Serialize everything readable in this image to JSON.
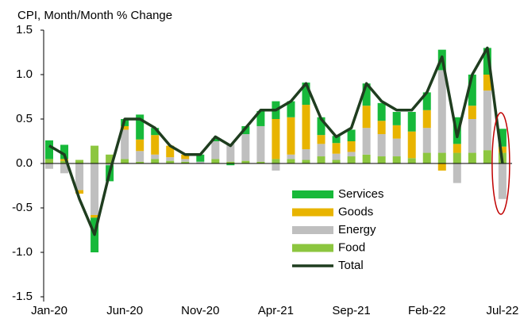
{
  "chart_data": {
    "type": "stacked_bar_line",
    "title": "CPI, Month/Month % Change",
    "categories": [
      "Jan-20",
      null,
      null,
      null,
      null,
      "Jun-20",
      null,
      null,
      null,
      null,
      "Nov-20",
      null,
      null,
      null,
      null,
      "Apr-21",
      null,
      null,
      null,
      null,
      "Sep-21",
      null,
      null,
      null,
      null,
      "Feb-22",
      null,
      null,
      null,
      null,
      "Jul-22"
    ],
    "series": [
      {
        "name": "Services",
        "color": "#17b93a",
        "values": [
          0.21,
          0.16,
          0,
          -0.39,
          -0.18,
          0.08,
          0.28,
          0.08,
          0,
          0,
          0.08,
          0.03,
          -0.02,
          0.09,
          0.17,
          0.2,
          0.18,
          0.25,
          0.2,
          0.08,
          0.13,
          0.25,
          0.2,
          0.15,
          0.22,
          0.2,
          0.23,
          0.3,
          0.35,
          0.3,
          0.2
        ]
      },
      {
        "name": "Goods",
        "color": "#e8b400",
        "values": [
          0,
          0.02,
          -0.04,
          -0.03,
          0,
          0.04,
          0.13,
          0.22,
          0.13,
          0.05,
          0,
          0,
          0,
          0,
          0,
          0.45,
          0.42,
          0.5,
          0.1,
          0.12,
          0.12,
          0.25,
          0.15,
          0.15,
          0.3,
          0.2,
          -0.08,
          0.1,
          0.15,
          0.18,
          0.07
        ]
      },
      {
        "name": "Energy",
        "color": "#bfbfbf",
        "values": [
          -0.06,
          -0.11,
          -0.3,
          -0.58,
          -0.02,
          0.33,
          0.12,
          0.05,
          0.04,
          0.03,
          0.02,
          0.2,
          0.2,
          0.3,
          0.4,
          -0.08,
          0.05,
          0.12,
          0.14,
          0.07,
          0.05,
          0.3,
          0.25,
          0.2,
          0,
          0.28,
          0.93,
          -0.22,
          0.38,
          0.67,
          -0.4
        ]
      },
      {
        "name": "Food",
        "color": "#8cc63f",
        "values": [
          0.05,
          0.03,
          0.04,
          0.2,
          0.1,
          0.05,
          0.02,
          0.05,
          0.03,
          0.02,
          0,
          0.05,
          0.02,
          0.03,
          0.02,
          0.05,
          0.05,
          0.04,
          0.08,
          0.04,
          0.08,
          0.1,
          0.08,
          0.08,
          0.06,
          0.12,
          0.12,
          0.12,
          0.12,
          0.15,
          0.12
        ]
      },
      {
        "name": "Total",
        "color": "#1f3d1f",
        "line": true,
        "values": [
          0.2,
          0.1,
          -0.4,
          -0.8,
          -0.1,
          0.5,
          0.5,
          0.4,
          0.2,
          0.1,
          0.1,
          0.3,
          0.2,
          0.4,
          0.6,
          0.6,
          0.7,
          0.9,
          0.5,
          0.3,
          0.4,
          0.9,
          0.7,
          0.6,
          0.6,
          0.8,
          1.2,
          0.3,
          1.0,
          1.3,
          0.0
        ]
      }
    ],
    "ylim": [
      -1.5,
      1.5
    ],
    "yticks": [
      -1.5,
      -0.5,
      0.5,
      1.5,
      {
        "value": 1.0,
        "label": "1.0"
      },
      {
        "value": 0.0,
        "label": "0.0"
      },
      {
        "value": -1.0,
        "label": "-1.0"
      }
    ],
    "annotation_color": "#c00000"
  }
}
